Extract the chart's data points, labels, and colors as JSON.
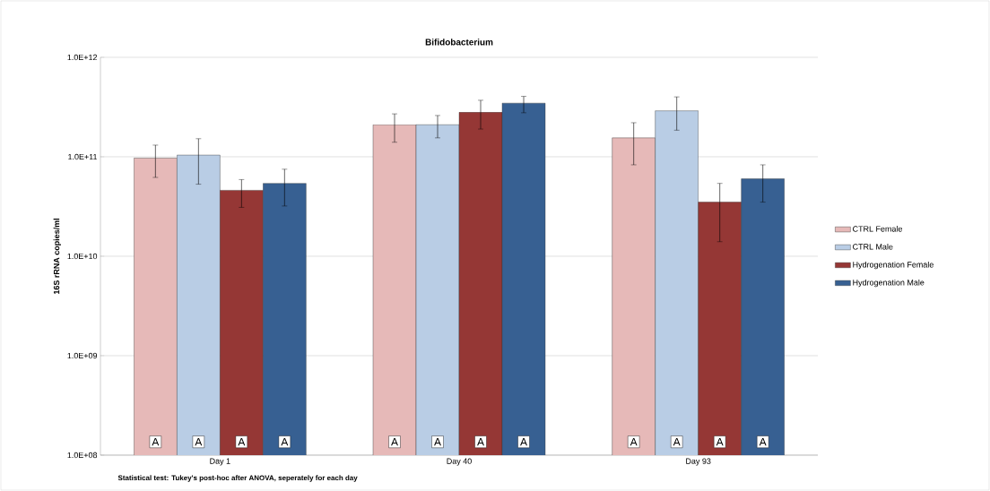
{
  "chart_data": {
    "type": "bar",
    "title": "Bifidobacterium",
    "ylabel": "16S rRNA copies/ml",
    "categories": [
      "Day 1",
      "Day 40",
      "Day 93"
    ],
    "series": [
      {
        "name": "CTRL Female",
        "color": "#e6b9b8",
        "values": [
          97000000000.0,
          210000000000.0,
          155000000000.0
        ],
        "errors": [
          [
            62000000000.0,
            131000000000.0
          ],
          [
            140000000000.0,
            270000000000.0
          ],
          [
            83000000000.0,
            220000000000.0
          ]
        ],
        "value_labels": [
          "A",
          "A",
          "A"
        ]
      },
      {
        "name": "CTRL Male",
        "color": "#b9cde5",
        "values": [
          104000000000.0,
          210000000000.0,
          290000000000.0
        ],
        "errors": [
          [
            53000000000.0,
            152000000000.0
          ],
          [
            155000000000.0,
            260000000000.0
          ],
          [
            185000000000.0,
            400000000000.0
          ]
        ],
        "value_labels": [
          "A",
          "A",
          "A"
        ]
      },
      {
        "name": "Hydrogenation Female",
        "color": "#953735",
        "values": [
          46000000000.0,
          280000000000.0,
          35000000000.0
        ],
        "errors": [
          [
            31000000000.0,
            59000000000.0
          ],
          [
            190000000000.0,
            370000000000.0
          ],
          [
            14000000000.0,
            54000000000.0
          ]
        ],
        "value_labels": [
          "A",
          "A",
          "A"
        ]
      },
      {
        "name": "Hydrogenation Male",
        "color": "#376092",
        "values": [
          54000000000.0,
          346000000000.0,
          60000000000.0
        ],
        "errors": [
          [
            32000000000.0,
            75000000000.0
          ],
          [
            277000000000.0,
            405000000000.0
          ],
          [
            35000000000.0,
            83000000000.0
          ]
        ],
        "value_labels": [
          "A",
          "A",
          "A"
        ]
      }
    ],
    "log": "y",
    "ylim": [
      100000000.0,
      1000000000000.0
    ],
    "yticks": [
      {
        "value": 100000000.0,
        "label": "1.0E+08"
      },
      {
        "value": 1000000000.0,
        "label": "1.0E+09"
      },
      {
        "value": 10000000000.0,
        "label": "1.0E+10"
      },
      {
        "value": 100000000000.0,
        "label": "1.0E+11"
      },
      {
        "value": 1000000000000.0,
        "label": "1.0E+12"
      }
    ],
    "grid": "y",
    "legend": "right",
    "annotations": [
      "Statistical test: Tukey's post-hoc after ANOVA, seperately for each day"
    ]
  }
}
